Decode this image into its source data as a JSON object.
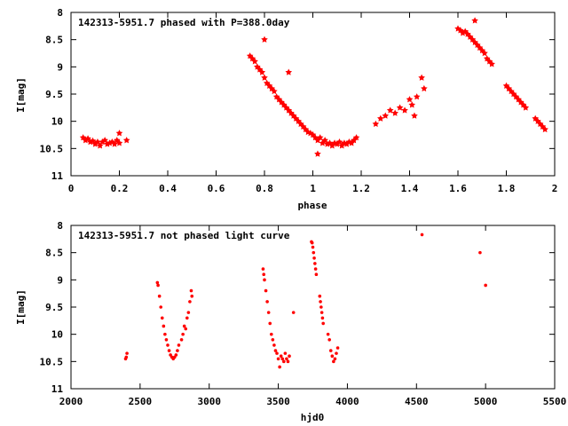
{
  "chart_data": [
    {
      "type": "scatter",
      "title": "142313-5951.7 phased with P=388.0day",
      "xlabel": "phase",
      "ylabel": "I[mag]",
      "xlim": [
        0,
        2
      ],
      "ylim": [
        11,
        8
      ],
      "y_inverted": true,
      "grid": false,
      "marker_color": "#ff0000",
      "marker": "filled-star",
      "xticks": [
        {
          "value": 0,
          "label": "0"
        },
        {
          "value": 0.2,
          "label": "0.2"
        },
        {
          "value": 0.4,
          "label": "0.4"
        },
        {
          "value": 0.6,
          "label": "0.6"
        },
        {
          "value": 0.8,
          "label": "0.8"
        },
        {
          "value": 1,
          "label": "1"
        },
        {
          "value": 1.2,
          "label": "1.2"
        },
        {
          "value": 1.4,
          "label": "1.4"
        },
        {
          "value": 1.6,
          "label": "1.6"
        },
        {
          "value": 1.8,
          "label": "1.8"
        },
        {
          "value": 2,
          "label": "2"
        }
      ],
      "yticks": [
        {
          "value": 8,
          "label": "8"
        },
        {
          "value": 8.5,
          "label": "8.5"
        },
        {
          "value": 9,
          "label": "9"
        },
        {
          "value": 9.5,
          "label": "9.5"
        },
        {
          "value": 10,
          "label": "10"
        },
        {
          "value": 10.5,
          "label": "10.5"
        },
        {
          "value": 11,
          "label": "11"
        }
      ],
      "series": [
        {
          "points": [
            [
              0.05,
              10.3
            ],
            [
              0.06,
              10.35
            ],
            [
              0.07,
              10.32
            ],
            [
              0.08,
              10.38
            ],
            [
              0.09,
              10.36
            ],
            [
              0.1,
              10.42
            ],
            [
              0.11,
              10.38
            ],
            [
              0.12,
              10.45
            ],
            [
              0.13,
              10.38
            ],
            [
              0.14,
              10.35
            ],
            [
              0.15,
              10.42
            ],
            [
              0.16,
              10.4
            ],
            [
              0.17,
              10.38
            ],
            [
              0.18,
              10.42
            ],
            [
              0.19,
              10.35
            ],
            [
              0.2,
              10.22
            ],
            [
              0.2,
              10.4
            ],
            [
              0.23,
              10.35
            ],
            [
              0.74,
              8.8
            ],
            [
              0.75,
              8.85
            ],
            [
              0.76,
              8.9
            ],
            [
              0.77,
              9.0
            ],
            [
              0.78,
              9.05
            ],
            [
              0.79,
              9.1
            ],
            [
              0.8,
              8.5
            ],
            [
              0.8,
              9.2
            ],
            [
              0.81,
              9.3
            ],
            [
              0.82,
              9.35
            ],
            [
              0.83,
              9.4
            ],
            [
              0.84,
              9.45
            ],
            [
              0.85,
              9.55
            ],
            [
              0.86,
              9.6
            ],
            [
              0.87,
              9.65
            ],
            [
              0.88,
              9.7
            ],
            [
              0.89,
              9.75
            ],
            [
              0.9,
              9.1
            ],
            [
              0.9,
              9.8
            ],
            [
              0.91,
              9.85
            ],
            [
              0.92,
              9.9
            ],
            [
              0.93,
              9.95
            ],
            [
              0.94,
              10.0
            ],
            [
              0.95,
              10.05
            ],
            [
              0.96,
              10.1
            ],
            [
              0.97,
              10.15
            ],
            [
              0.98,
              10.2
            ],
            [
              0.99,
              10.22
            ],
            [
              1.0,
              10.25
            ],
            [
              1.01,
              10.3
            ],
            [
              1.02,
              10.35
            ],
            [
              1.02,
              10.6
            ],
            [
              1.03,
              10.3
            ],
            [
              1.04,
              10.4
            ],
            [
              1.05,
              10.35
            ],
            [
              1.06,
              10.42
            ],
            [
              1.07,
              10.4
            ],
            [
              1.08,
              10.45
            ],
            [
              1.09,
              10.4
            ],
            [
              1.1,
              10.42
            ],
            [
              1.11,
              10.38
            ],
            [
              1.12,
              10.45
            ],
            [
              1.13,
              10.4
            ],
            [
              1.14,
              10.42
            ],
            [
              1.15,
              10.38
            ],
            [
              1.16,
              10.4
            ],
            [
              1.17,
              10.35
            ],
            [
              1.18,
              10.3
            ],
            [
              1.26,
              10.05
            ],
            [
              1.28,
              9.95
            ],
            [
              1.3,
              9.9
            ],
            [
              1.32,
              9.8
            ],
            [
              1.34,
              9.85
            ],
            [
              1.36,
              9.75
            ],
            [
              1.38,
              9.8
            ],
            [
              1.4,
              9.6
            ],
            [
              1.41,
              9.7
            ],
            [
              1.42,
              9.9
            ],
            [
              1.43,
              9.55
            ],
            [
              1.45,
              9.2
            ],
            [
              1.46,
              9.4
            ],
            [
              1.6,
              8.3
            ],
            [
              1.61,
              8.33
            ],
            [
              1.62,
              8.38
            ],
            [
              1.63,
              8.35
            ],
            [
              1.64,
              8.4
            ],
            [
              1.65,
              8.45
            ],
            [
              1.66,
              8.5
            ],
            [
              1.67,
              8.15
            ],
            [
              1.67,
              8.55
            ],
            [
              1.68,
              8.6
            ],
            [
              1.69,
              8.65
            ],
            [
              1.7,
              8.7
            ],
            [
              1.71,
              8.75
            ],
            [
              1.72,
              8.85
            ],
            [
              1.73,
              8.9
            ],
            [
              1.74,
              8.95
            ],
            [
              1.8,
              9.35
            ],
            [
              1.81,
              9.4
            ],
            [
              1.82,
              9.45
            ],
            [
              1.83,
              9.5
            ],
            [
              1.84,
              9.55
            ],
            [
              1.85,
              9.6
            ],
            [
              1.86,
              9.65
            ],
            [
              1.87,
              9.7
            ],
            [
              1.88,
              9.75
            ],
            [
              1.92,
              9.95
            ],
            [
              1.93,
              10.0
            ],
            [
              1.94,
              10.05
            ],
            [
              1.95,
              10.1
            ],
            [
              1.96,
              10.15
            ]
          ]
        }
      ]
    },
    {
      "type": "scatter",
      "title": "142313-5951.7 not phased light curve",
      "xlabel": "hjd0",
      "ylabel": "I[mag]",
      "xlim": [
        2000,
        5500
      ],
      "ylim": [
        11,
        8
      ],
      "y_inverted": true,
      "grid": false,
      "marker_color": "#ff0000",
      "marker": "small-dot",
      "xticks": [
        {
          "value": 2000,
          "label": "2000"
        },
        {
          "value": 2500,
          "label": "2500"
        },
        {
          "value": 3000,
          "label": "3000"
        },
        {
          "value": 3500,
          "label": "3500"
        },
        {
          "value": 4000,
          "label": "4000"
        },
        {
          "value": 4500,
          "label": "4500"
        },
        {
          "value": 5000,
          "label": "5000"
        },
        {
          "value": 5500,
          "label": "5500"
        }
      ],
      "yticks": [
        {
          "value": 8,
          "label": "8"
        },
        {
          "value": 8.5,
          "label": "8.5"
        },
        {
          "value": 9,
          "label": "9"
        },
        {
          "value": 9.5,
          "label": "9.5"
        },
        {
          "value": 10,
          "label": "10"
        },
        {
          "value": 10.5,
          "label": "10.5"
        },
        {
          "value": 11,
          "label": "11"
        }
      ],
      "series": [
        {
          "points": [
            [
              2395,
              10.45
            ],
            [
              2400,
              10.42
            ],
            [
              2405,
              10.35
            ],
            [
              2625,
              9.05
            ],
            [
              2630,
              9.1
            ],
            [
              2640,
              9.3
            ],
            [
              2650,
              9.5
            ],
            [
              2660,
              9.7
            ],
            [
              2670,
              9.85
            ],
            [
              2680,
              10.0
            ],
            [
              2690,
              10.1
            ],
            [
              2700,
              10.2
            ],
            [
              2710,
              10.3
            ],
            [
              2720,
              10.38
            ],
            [
              2730,
              10.42
            ],
            [
              2740,
              10.45
            ],
            [
              2750,
              10.42
            ],
            [
              2760,
              10.38
            ],
            [
              2770,
              10.3
            ],
            [
              2780,
              10.2
            ],
            [
              2800,
              10.1
            ],
            [
              2810,
              10.0
            ],
            [
              2820,
              9.85
            ],
            [
              2830,
              9.9
            ],
            [
              2840,
              9.7
            ],
            [
              2850,
              9.6
            ],
            [
              2860,
              9.4
            ],
            [
              2870,
              9.2
            ],
            [
              2875,
              9.3
            ],
            [
              3390,
              8.8
            ],
            [
              3395,
              8.9
            ],
            [
              3400,
              9.0
            ],
            [
              3410,
              9.2
            ],
            [
              3420,
              9.4
            ],
            [
              3430,
              9.6
            ],
            [
              3440,
              9.8
            ],
            [
              3450,
              10.0
            ],
            [
              3460,
              10.1
            ],
            [
              3470,
              10.2
            ],
            [
              3480,
              10.3
            ],
            [
              3490,
              10.35
            ],
            [
              3500,
              10.45
            ],
            [
              3510,
              10.6
            ],
            [
              3520,
              10.4
            ],
            [
              3530,
              10.45
            ],
            [
              3540,
              10.5
            ],
            [
              3550,
              10.35
            ],
            [
              3560,
              10.45
            ],
            [
              3570,
              10.5
            ],
            [
              3580,
              10.4
            ],
            [
              3610,
              9.6
            ],
            [
              3740,
              8.3
            ],
            [
              3745,
              8.32
            ],
            [
              3750,
              8.4
            ],
            [
              3755,
              8.5
            ],
            [
              3760,
              8.6
            ],
            [
              3765,
              8.7
            ],
            [
              3770,
              8.8
            ],
            [
              3775,
              8.9
            ],
            [
              3800,
              9.3
            ],
            [
              3805,
              9.4
            ],
            [
              3810,
              9.5
            ],
            [
              3815,
              9.6
            ],
            [
              3820,
              9.7
            ],
            [
              3825,
              9.8
            ],
            [
              3860,
              10.0
            ],
            [
              3870,
              10.1
            ],
            [
              3880,
              10.3
            ],
            [
              3890,
              10.4
            ],
            [
              3900,
              10.5
            ],
            [
              3910,
              10.45
            ],
            [
              3920,
              10.35
            ],
            [
              3930,
              10.25
            ],
            [
              4540,
              8.17
            ],
            [
              4960,
              8.5
            ],
            [
              5000,
              9.1
            ]
          ]
        }
      ]
    }
  ]
}
